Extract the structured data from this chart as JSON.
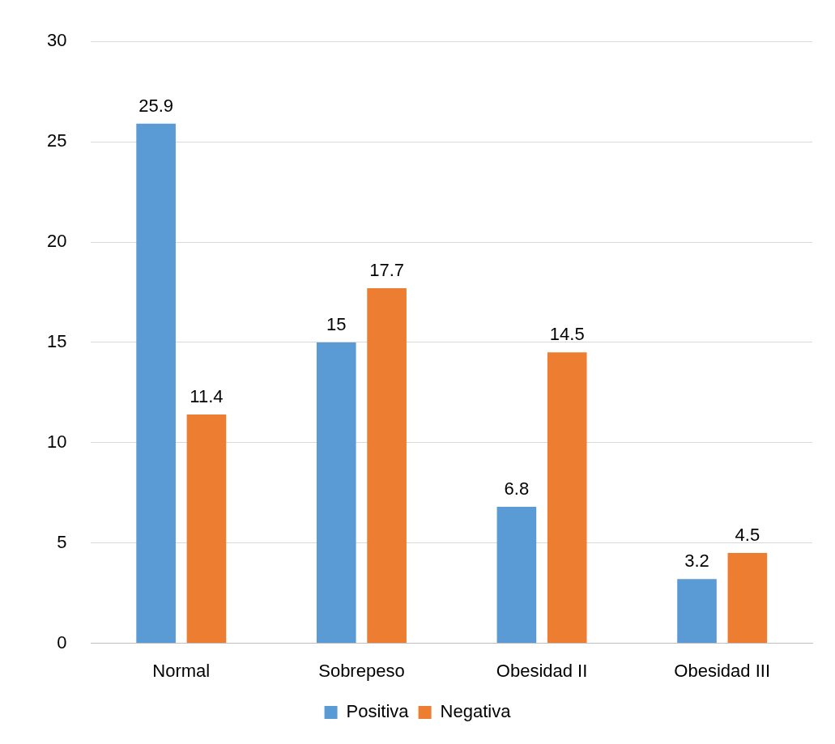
{
  "chart_data": {
    "type": "bar",
    "categories": [
      "Normal",
      "Sobrepeso",
      "Obesidad II",
      "Obesidad III"
    ],
    "series": [
      {
        "name": "Positiva",
        "color": "#5b9bd5",
        "values": [
          25.9,
          15,
          6.8,
          3.2
        ]
      },
      {
        "name": "Negativa",
        "color": "#ed7d31",
        "values": [
          11.4,
          17.7,
          14.5,
          4.5
        ]
      }
    ],
    "ylim": [
      0,
      30
    ],
    "yticks": [
      0,
      5,
      10,
      15,
      20,
      25,
      30
    ],
    "grid": "y",
    "legend": "bottom",
    "data_labels": true
  }
}
